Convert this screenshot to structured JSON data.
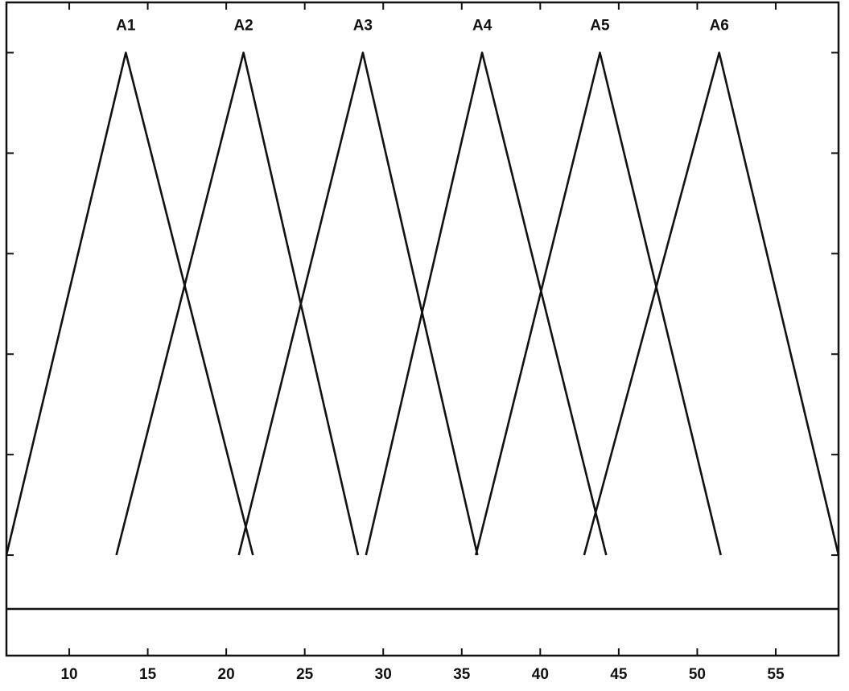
{
  "chart_data": {
    "type": "line",
    "title": "",
    "xlabel": "",
    "ylabel": "",
    "xlim": [
      6,
      59
    ],
    "ylim": [
      -0.2,
      1.1
    ],
    "x_ticks": [
      10,
      15,
      20,
      25,
      30,
      35,
      40,
      45,
      50,
      55
    ],
    "x_tick_labels": [
      "10",
      "15",
      "20",
      "25",
      "30",
      "35",
      "40",
      "45",
      "50",
      "55"
    ],
    "y_ticks": [
      0,
      0.2,
      0.4,
      0.6,
      0.8,
      1
    ],
    "grid": false,
    "series": [
      {
        "name": "A1",
        "x": [
          6.0,
          13.6,
          21.7
        ],
        "y": [
          0,
          1,
          0
        ]
      },
      {
        "name": "A2",
        "x": [
          13.0,
          21.1,
          28.4
        ],
        "y": [
          0,
          1,
          0
        ]
      },
      {
        "name": "A3",
        "x": [
          20.8,
          28.7,
          36.0
        ],
        "y": [
          0,
          1,
          0
        ]
      },
      {
        "name": "A4",
        "x": [
          28.9,
          36.3,
          44.2
        ],
        "y": [
          0,
          1,
          0
        ]
      },
      {
        "name": "A5",
        "x": [
          35.9,
          43.8,
          51.5
        ],
        "y": [
          0,
          1,
          0
        ]
      },
      {
        "name": "A6",
        "x": [
          42.8,
          51.4,
          59.0
        ],
        "y": [
          0,
          1,
          0
        ]
      }
    ]
  }
}
